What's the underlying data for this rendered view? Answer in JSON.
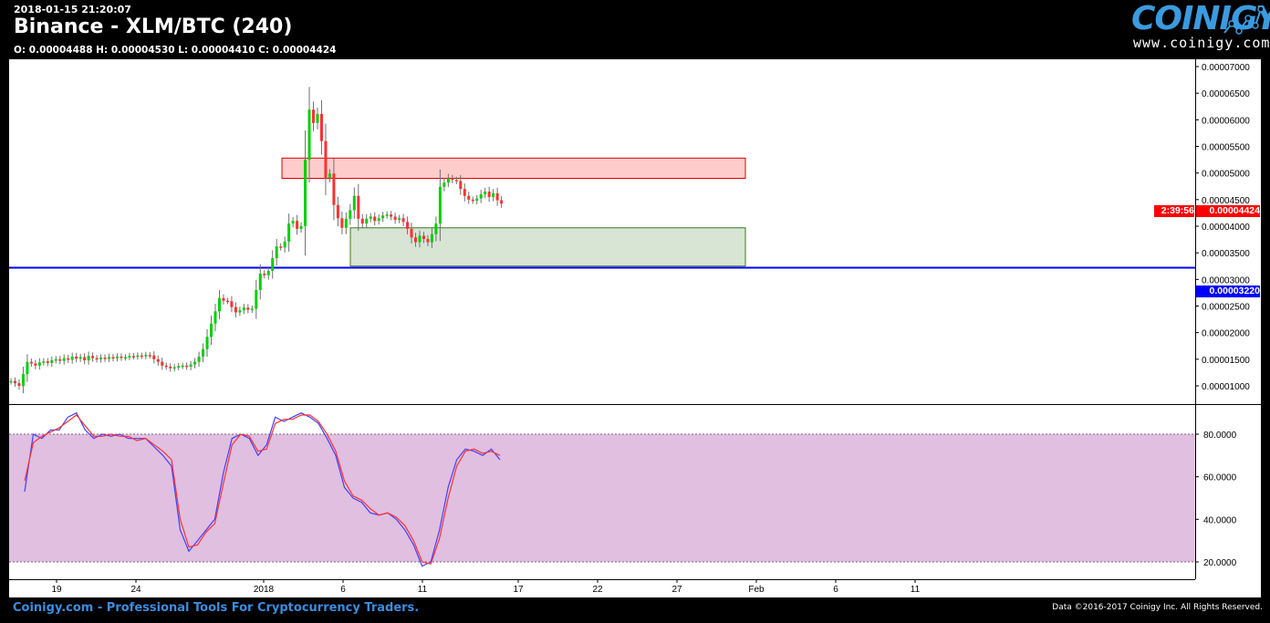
{
  "header": {
    "timestamp": "2018-01-15 21:20:07",
    "title": "Binance - XLM/BTC (240)",
    "ohlc": "O: 0.00004488 H: 0.00004530 L: 0.00004410 C: 0.00004424"
  },
  "logo": {
    "brand": "COINIGY",
    "url": "www.coinigy.com"
  },
  "footer": {
    "left": "Coinigy.com - Professional Tools For Cryptocurrency Traders.",
    "right": "Data ©2016-2017 Coinigy Inc. All Rights Reserved."
  },
  "price_labels": {
    "last_price": "0.00004424",
    "countdown": "2:39:56",
    "horizontal_line": "0.00003220"
  },
  "colors": {
    "up": "#00d000",
    "down": "#ff3030",
    "wick": "#707070",
    "resistance_fill": "#ffcccc",
    "resistance_border": "#e00000",
    "support_fill": "#d8e4d4",
    "support_border": "#3a7a20",
    "hline": "#0000ff",
    "stoch_band": "#e0bfe0",
    "stoch_k": "#4040ff",
    "stoch_d": "#ff3030"
  },
  "chart_data": [
    {
      "type": "candlestick",
      "ylim": [
        7e-06,
        7.1e-05
      ],
      "yticks": [
        "0.00001000",
        "0.00001500",
        "0.00002000",
        "0.00002500",
        "0.00003000",
        "0.00003500",
        "0.00004000",
        "0.00004500",
        "0.00005000",
        "0.00005500",
        "0.00006000",
        "0.00006500",
        "0.00007000"
      ],
      "xticks": [
        "19",
        "24",
        "2018",
        "6",
        "11",
        "17",
        "22",
        "27",
        "Feb",
        "6",
        "11"
      ],
      "closes": [
        1.09e-05,
        1.05e-05,
        1e-05,
        1.22e-05,
        1.45e-05,
        1.42e-05,
        1.38e-05,
        1.44e-05,
        1.46e-05,
        1.43e-05,
        1.48e-05,
        1.5e-05,
        1.47e-05,
        1.52e-05,
        1.49e-05,
        1.55e-05,
        1.51e-05,
        1.54e-05,
        1.48e-05,
        1.56e-05,
        1.52e-05,
        1.5e-05,
        1.53e-05,
        1.51e-05,
        1.54e-05,
        1.52e-05,
        1.55e-05,
        1.53e-05,
        1.54e-05,
        1.56e-05,
        1.55e-05,
        1.57e-05,
        1.56e-05,
        1.58e-05,
        1.57e-05,
        1.5e-05,
        1.45e-05,
        1.38e-05,
        1.36e-05,
        1.33e-05,
        1.35e-05,
        1.37e-05,
        1.38e-05,
        1.36e-05,
        1.4e-05,
        1.45e-05,
        1.55e-05,
        1.69e-05,
        1.92e-05,
        2.17e-05,
        2.4e-05,
        2.65e-05,
        2.6e-05,
        2.59e-05,
        2.48e-05,
        2.38e-05,
        2.42e-05,
        2.47e-05,
        2.43e-05,
        2.45e-05,
        2.8e-05,
        3.11e-05,
        3.08e-05,
        3.16e-05,
        3.4e-05,
        3.62e-05,
        3.6e-05,
        3.71e-05,
        4.05e-05,
        4.1e-05,
        3.95e-05,
        4e-05,
        5.25e-05,
        6.19e-05,
        5.94e-05,
        6.11e-05,
        5.6e-05,
        4.91e-05,
        4.99e-05,
        4.4e-05,
        4.15e-05,
        3.97e-05,
        4.14e-05,
        4.3e-05,
        4.57e-05,
        4.14e-05,
        4.05e-05,
        4.14e-05,
        4.18e-05,
        4.1e-05,
        4.15e-05,
        4.2e-05,
        4.22e-05,
        4.18e-05,
        4.12e-05,
        4.15e-05,
        4.08e-05,
        3.95e-05,
        3.79e-05,
        3.7e-05,
        3.82e-05,
        3.76e-05,
        3.7e-05,
        3.85e-05,
        4.05e-05,
        4.74e-05,
        4.82e-05,
        4.9e-05,
        4.87e-05,
        4.85e-05,
        4.7e-05,
        4.57e-05,
        4.5e-05,
        4.48e-05,
        4.52e-05,
        4.6e-05,
        4.65e-05,
        4.55e-05,
        4.62e-05,
        4.488e-05,
        4.424e-05
      ],
      "zones": [
        {
          "kind": "resistance",
          "low": 4.9e-05,
          "high": 5.28e-05
        },
        {
          "kind": "support",
          "low": 3.25e-05,
          "high": 3.97e-05
        }
      ],
      "hline": 3.22e-05,
      "last": 4.424e-05
    },
    {
      "type": "line",
      "ylim": [
        15,
        95
      ],
      "yticks": [
        "20.0000",
        "40.0000",
        "60.0000",
        "80.0000"
      ],
      "bands": [
        20,
        80
      ],
      "series": [
        {
          "key": "k",
          "values": [
            53,
            80,
            78,
            82,
            82,
            88,
            90,
            82,
            78,
            80,
            79,
            80,
            78,
            78,
            78,
            74,
            70,
            65,
            35,
            25,
            30,
            35,
            40,
            62,
            78,
            80,
            78,
            70,
            75,
            88,
            86,
            88,
            90,
            88,
            85,
            78,
            70,
            55,
            50,
            48,
            43,
            42,
            43,
            40,
            35,
            28,
            18,
            20,
            35,
            55,
            68,
            73,
            72,
            70,
            73,
            68
          ]
        },
        {
          "key": "d",
          "values": [
            58,
            76,
            79,
            81,
            83,
            86,
            89,
            84,
            79,
            79,
            80,
            79,
            79,
            77,
            78,
            75,
            72,
            68,
            40,
            27,
            28,
            34,
            38,
            57,
            75,
            80,
            79,
            72,
            73,
            85,
            87,
            87,
            89,
            89,
            86,
            80,
            72,
            58,
            51,
            49,
            45,
            42,
            43,
            41,
            37,
            30,
            20,
            19,
            31,
            50,
            65,
            72,
            73,
            71,
            72,
            70
          ]
        }
      ]
    }
  ]
}
